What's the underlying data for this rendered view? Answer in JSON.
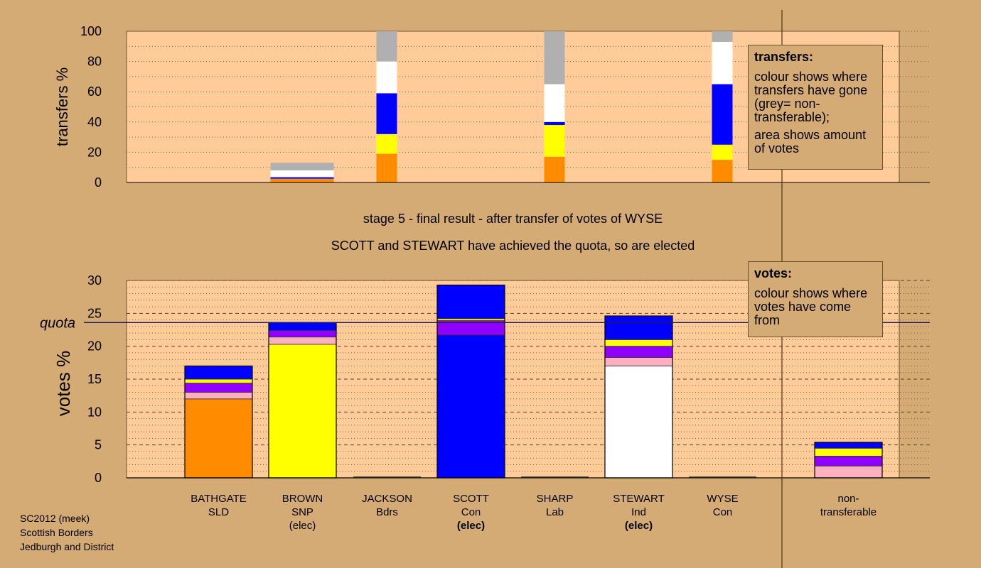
{
  "stage_line": "stage 5 - final result - after transfer of votes of WYSE",
  "elected_line": "SCOTT and STEWART have achieved the quota, so are elected",
  "legend_transfers": {
    "title": "transfers:",
    "line1": "colour shows where transfers have gone (grey= non-transferable);",
    "line2": "area shows amount of votes"
  },
  "legend_votes": {
    "title": "votes:",
    "line1": "colour shows where votes have come from"
  },
  "footnote": [
    "SC2012 (meek)",
    "Scottish Borders",
    "Jedburgh and District"
  ],
  "colors": {
    "SLD": "#ff8c00",
    "SNP": "#ffff00",
    "Bdrs": "#ffb0c0",
    "Lab": "#9000ff",
    "Ind": "#ffffff",
    "Con": "#0000ff",
    "nontransferable": "#b0b0b0",
    "plot_bg": "#ffcc99",
    "page_bg": "#d4aa75"
  },
  "chart_data": [
    {
      "type": "bar",
      "stacked": true,
      "ylabel": "transfers %",
      "ylim": [
        0,
        100
      ],
      "yticks": [
        0,
        20,
        40,
        60,
        80,
        100
      ],
      "categories": [
        "BATHGATE",
        "BROWN",
        "JACKSON",
        "SCOTT",
        "SHARP",
        "STEWART",
        "WYSE"
      ],
      "bars": [
        {
          "category": "BROWN",
          "segments": [
            {
              "source": "SLD",
              "value": 2.5
            },
            {
              "source": "SNP",
              "value": 0
            },
            {
              "source": "Con",
              "value": 1
            },
            {
              "source": "Ind",
              "value": 4.5
            },
            {
              "source": "nontransferable",
              "value": 5
            }
          ]
        },
        {
          "category": "JACKSON",
          "segments": [
            {
              "source": "SLD",
              "value": 19
            },
            {
              "source": "SNP",
              "value": 13
            },
            {
              "source": "Con",
              "value": 27
            },
            {
              "source": "Ind",
              "value": 21
            },
            {
              "source": "nontransferable",
              "value": 20
            }
          ]
        },
        {
          "category": "SHARP",
          "segments": [
            {
              "source": "SLD",
              "value": 17
            },
            {
              "source": "SNP",
              "value": 21
            },
            {
              "source": "Con",
              "value": 2
            },
            {
              "source": "Ind",
              "value": 25
            },
            {
              "source": "nontransferable",
              "value": 35
            }
          ]
        },
        {
          "category": "WYSE",
          "segments": [
            {
              "source": "SLD",
              "value": 15
            },
            {
              "source": "SNP",
              "value": 10
            },
            {
              "source": "Con",
              "value": 40
            },
            {
              "source": "Ind",
              "value": 28
            },
            {
              "source": "nontransferable",
              "value": 7
            }
          ]
        }
      ]
    },
    {
      "type": "bar",
      "stacked": true,
      "ylabel": "votes %",
      "ylim": [
        0,
        30
      ],
      "yticks": [
        0,
        5,
        10,
        15,
        20,
        25,
        30
      ],
      "quota": 23.6,
      "quota_label": "quota",
      "candidates": [
        {
          "name": "BATHGATE",
          "party": "SLD",
          "status": "",
          "status_bold": false,
          "segments": [
            {
              "source": "SLD",
              "value": 12
            },
            {
              "source": "Bdrs",
              "value": 1
            },
            {
              "source": "Lab",
              "value": 1.4
            },
            {
              "source": "SNP",
              "value": 0.6
            },
            {
              "source": "Con",
              "value": 2
            }
          ]
        },
        {
          "name": "BROWN",
          "party": "SNP",
          "status": "(elec)",
          "status_bold": false,
          "segments": [
            {
              "source": "SNP",
              "value": 20.3
            },
            {
              "source": "Bdrs",
              "value": 1.1
            },
            {
              "source": "Lab",
              "value": 1
            },
            {
              "source": "Con",
              "value": 1.2
            }
          ]
        },
        {
          "name": "JACKSON",
          "party": "Bdrs",
          "status": "",
          "status_bold": false,
          "segments": []
        },
        {
          "name": "SCOTT",
          "party": "Con",
          "status": "(elec)",
          "status_bold": true,
          "segments": [
            {
              "source": "Con",
              "value": 21.7
            },
            {
              "source": "Lab",
              "value": 2.2
            },
            {
              "source": "SNP",
              "value": 0.3
            },
            {
              "source": "Con",
              "value": 5.1
            }
          ]
        },
        {
          "name": "SHARP",
          "party": "Lab",
          "status": "",
          "status_bold": false,
          "segments": []
        },
        {
          "name": "STEWART",
          "party": "Ind",
          "status": "(elec)",
          "status_bold": true,
          "segments": [
            {
              "source": "Ind",
              "value": 17
            },
            {
              "source": "Bdrs",
              "value": 1.3
            },
            {
              "source": "Lab",
              "value": 1.7
            },
            {
              "source": "SNP",
              "value": 1
            },
            {
              "source": "Con",
              "value": 3.6
            }
          ]
        },
        {
          "name": "WYSE",
          "party": "Con",
          "status": "",
          "status_bold": false,
          "segments": []
        },
        {
          "name": "non-",
          "party": "transferable",
          "status": "",
          "status_bold": false,
          "segments": [
            {
              "source": "Bdrs",
              "value": 1.8
            },
            {
              "source": "Lab",
              "value": 1.5
            },
            {
              "source": "SNP",
              "value": 1.2
            },
            {
              "source": "Con",
              "value": 0.9
            }
          ]
        }
      ]
    }
  ]
}
